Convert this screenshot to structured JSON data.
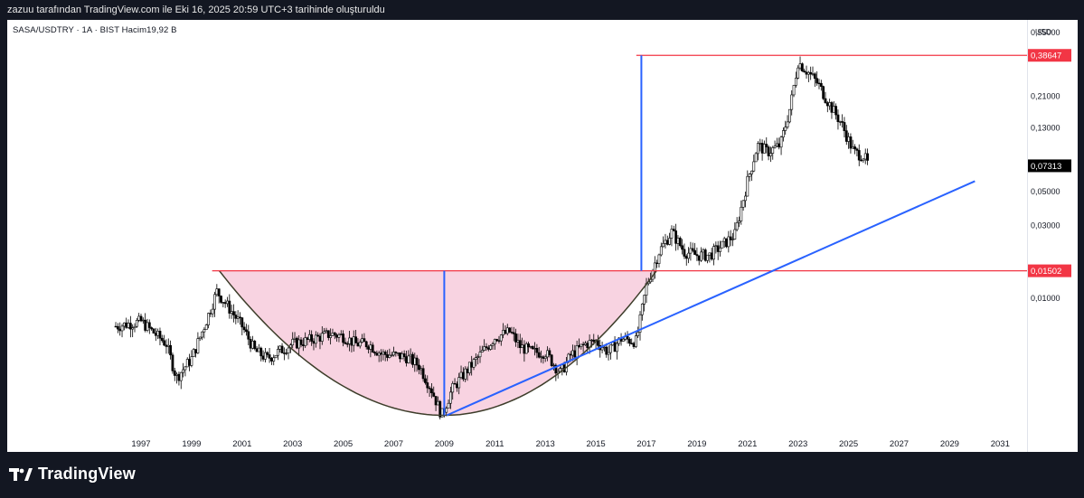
{
  "header": {
    "attribution": "zazuu tarafından TradingView.com ile Eki 16, 2025 20:59 UTC+3 tarihinde oluşturuldu"
  },
  "symbol": {
    "info": "SASA/USDTRY · 1A · BIST   Hacim19,92 B"
  },
  "footer": {
    "brand": "TradingView"
  },
  "colors": {
    "background": "#131722",
    "candle": "#000000",
    "horizontal_line": "#f23645",
    "cup_fill": "#f8d3e1",
    "arc": "#3d3d2a",
    "measure_line": "#2962ff",
    "trendline": "#2962ff",
    "last_price_bg": "#000000"
  },
  "chart_data": {
    "type": "candlestick",
    "title": "",
    "xlabel": "",
    "ylabel": "",
    "y_scale": "log",
    "currency": "USD",
    "x_ticks": [
      "1997",
      "1999",
      "2001",
      "2003",
      "2005",
      "2007",
      "2009",
      "2011",
      "2013",
      "2015",
      "2017",
      "2019",
      "2021",
      "2023",
      "2025",
      "2027",
      "2029",
      "2031"
    ],
    "y_ticks": [
      "0,55000",
      "0,21000",
      "0,13000",
      "0,05000",
      "0,03000",
      "0,01000"
    ],
    "y_tick_values": [
      0.55,
      0.21,
      0.13,
      0.05,
      0.03,
      0.01
    ],
    "price_labels": [
      {
        "label": "0,38647",
        "value": 0.38647,
        "style": "red"
      },
      {
        "label": "0,07313",
        "value": 0.07313,
        "style": "last"
      },
      {
        "label": "0,01502",
        "value": 0.01502,
        "style": "red"
      }
    ],
    "price_path": [
      [
        1996.0,
        0.0065
      ],
      [
        1997.0,
        0.007
      ],
      [
        1998.0,
        0.005
      ],
      [
        1998.4,
        0.003
      ],
      [
        1999.0,
        0.004
      ],
      [
        1999.5,
        0.0065
      ],
      [
        2000.0,
        0.011
      ],
      [
        2000.5,
        0.0085
      ],
      [
        2001.0,
        0.0065
      ],
      [
        2001.5,
        0.0045
      ],
      [
        2002.0,
        0.004
      ],
      [
        2002.5,
        0.0045
      ],
      [
        2003.0,
        0.005
      ],
      [
        2003.5,
        0.0052
      ],
      [
        2004.0,
        0.0055
      ],
      [
        2004.5,
        0.0058
      ],
      [
        2005.0,
        0.0056
      ],
      [
        2005.5,
        0.005
      ],
      [
        2006.0,
        0.005
      ],
      [
        2006.5,
        0.0043
      ],
      [
        2007.0,
        0.0042
      ],
      [
        2007.5,
        0.0041
      ],
      [
        2008.0,
        0.0036
      ],
      [
        2008.5,
        0.0025
      ],
      [
        2008.9,
        0.0017
      ],
      [
        2009.3,
        0.0025
      ],
      [
        2009.8,
        0.0032
      ],
      [
        2010.3,
        0.004
      ],
      [
        2011.0,
        0.0055
      ],
      [
        2011.6,
        0.006
      ],
      [
        2012.0,
        0.0048
      ],
      [
        2012.5,
        0.0044
      ],
      [
        2013.0,
        0.0044
      ],
      [
        2013.6,
        0.0032
      ],
      [
        2014.0,
        0.0042
      ],
      [
        2014.6,
        0.005
      ],
      [
        2015.0,
        0.0052
      ],
      [
        2015.5,
        0.0044
      ],
      [
        2016.0,
        0.0054
      ],
      [
        2016.6,
        0.0052
      ],
      [
        2017.0,
        0.012
      ],
      [
        2017.5,
        0.02
      ],
      [
        2018.0,
        0.027
      ],
      [
        2018.5,
        0.02
      ],
      [
        2019.0,
        0.019
      ],
      [
        2019.5,
        0.019
      ],
      [
        2020.0,
        0.022
      ],
      [
        2020.5,
        0.026
      ],
      [
        2021.0,
        0.058
      ],
      [
        2021.4,
        0.1
      ],
      [
        2021.8,
        0.09
      ],
      [
        2022.3,
        0.1
      ],
      [
        2022.7,
        0.18
      ],
      [
        2023.0,
        0.35
      ],
      [
        2023.4,
        0.3
      ],
      [
        2023.8,
        0.25
      ],
      [
        2024.2,
        0.19
      ],
      [
        2024.7,
        0.14
      ],
      [
        2025.2,
        0.09
      ],
      [
        2025.6,
        0.085
      ],
      [
        2025.8,
        0.0731
      ]
    ],
    "overlays": {
      "resistance_high": 0.38647,
      "resistance_low": 0.01502,
      "rim_start_year": 2000.1,
      "rim_end_year": 2017.4,
      "cup_bottom_year": 2009.0,
      "cup_bottom_value": 0.0017,
      "measure_lines": [
        {
          "year": 2009.0,
          "from": 0.0017,
          "to": 0.01502
        },
        {
          "year": 2016.8,
          "from": 0.01502,
          "to": 0.38647
        }
      ],
      "trendline": {
        "from": [
          2009.1,
          0.0017
        ],
        "to": [
          2030.0,
          0.058
        ]
      }
    }
  }
}
